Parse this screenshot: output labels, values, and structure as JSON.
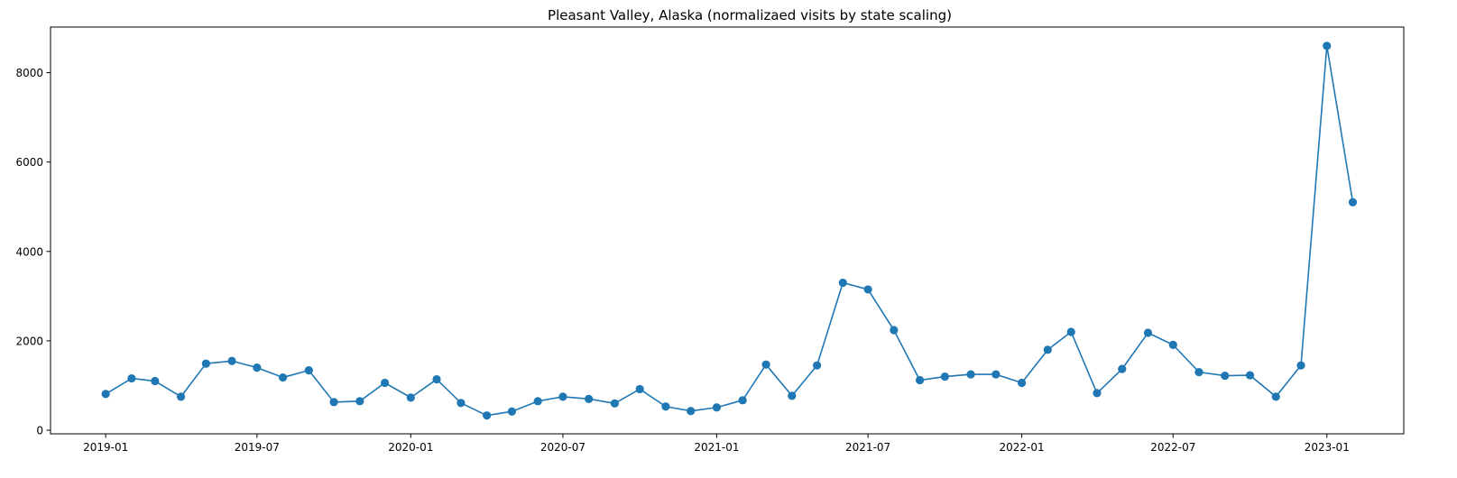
{
  "chart_data": {
    "type": "line",
    "title": "Pleasant Valley, Alaska (normalizaed visits by state scaling)",
    "xlabel": "",
    "ylabel": "",
    "x_axis_type": "date",
    "xlim": [
      "2018-10-27",
      "2023-04-03"
    ],
    "ylim": [
      -80,
      9020
    ],
    "x_ticks": [
      "2019-01",
      "2019-07",
      "2020-01",
      "2020-07",
      "2021-01",
      "2021-07",
      "2022-01",
      "2022-07",
      "2023-01"
    ],
    "y_ticks": [
      0,
      2000,
      4000,
      6000,
      8000
    ],
    "grid": false,
    "legend": "none",
    "series": [
      {
        "color": "#1f77b4",
        "marker": "circle",
        "x": [
          "2019-01-01",
          "2019-02-01",
          "2019-03-01",
          "2019-04-01",
          "2019-05-01",
          "2019-06-01",
          "2019-07-01",
          "2019-08-01",
          "2019-09-01",
          "2019-10-01",
          "2019-11-01",
          "2019-12-01",
          "2020-01-01",
          "2020-02-01",
          "2020-03-01",
          "2020-04-01",
          "2020-05-01",
          "2020-06-01",
          "2020-07-01",
          "2020-08-01",
          "2020-09-01",
          "2020-10-01",
          "2020-11-01",
          "2020-12-01",
          "2021-01-01",
          "2021-02-01",
          "2021-03-01",
          "2021-04-01",
          "2021-05-01",
          "2021-06-01",
          "2021-07-01",
          "2021-08-01",
          "2021-09-01",
          "2021-10-01",
          "2021-11-01",
          "2021-12-01",
          "2022-01-01",
          "2022-02-01",
          "2022-03-01",
          "2022-04-01",
          "2022-05-01",
          "2022-06-01",
          "2022-07-01",
          "2022-08-01",
          "2022-09-01",
          "2022-10-01",
          "2022-11-01",
          "2022-12-01",
          "2023-01-01",
          "2023-02-01"
        ],
        "y": [
          810,
          1160,
          1100,
          750,
          1490,
          1550,
          1400,
          1180,
          1340,
          630,
          650,
          1060,
          730,
          1140,
          610,
          330,
          420,
          650,
          750,
          700,
          600,
          920,
          530,
          430,
          510,
          670,
          1470,
          770,
          1450,
          3300,
          3150,
          2240,
          1120,
          1200,
          1250,
          1250,
          1060,
          1800,
          2200,
          830,
          1370,
          2180,
          1910,
          1300,
          1220,
          1230,
          750,
          1450,
          8600,
          5100
        ]
      }
    ]
  }
}
